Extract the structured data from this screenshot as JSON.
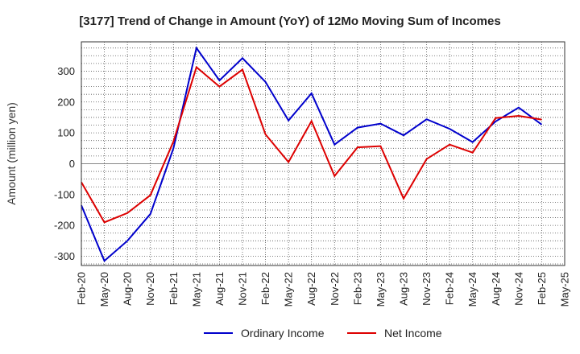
{
  "chart_data": {
    "type": "line",
    "title": "[3177]  Trend of Change in Amount (YoY) of 12Mo Moving Sum of Incomes",
    "xlabel": "",
    "ylabel": "Amount (million yen)",
    "ylim": [
      -330,
      395
    ],
    "yticks": [
      -300,
      -200,
      -100,
      0,
      100,
      200,
      300
    ],
    "grid": true,
    "legend_position": "bottom",
    "x": [
      "Feb-20",
      "May-20",
      "Aug-20",
      "Nov-20",
      "Feb-21",
      "May-21",
      "Aug-21",
      "Nov-21",
      "Feb-22",
      "May-22",
      "Aug-22",
      "Nov-22",
      "Feb-23",
      "May-23",
      "Aug-23",
      "Nov-23",
      "Feb-24",
      "May-24",
      "Aug-24",
      "Nov-24",
      "Feb-25",
      "May-25"
    ],
    "series": [
      {
        "name": "Ordinary Income",
        "color": "#0000cc",
        "values": [
          -135,
          -315,
          -250,
          -163,
          50,
          375,
          270,
          342,
          265,
          140,
          228,
          62,
          117,
          130,
          92,
          144,
          113,
          70,
          137,
          182,
          127,
          null
        ]
      },
      {
        "name": "Net Income",
        "color": "#dd0000",
        "values": [
          -60,
          -190,
          -160,
          -102,
          72,
          313,
          250,
          305,
          95,
          5,
          138,
          -40,
          53,
          57,
          -113,
          15,
          62,
          36,
          148,
          155,
          143,
          null
        ]
      }
    ]
  }
}
